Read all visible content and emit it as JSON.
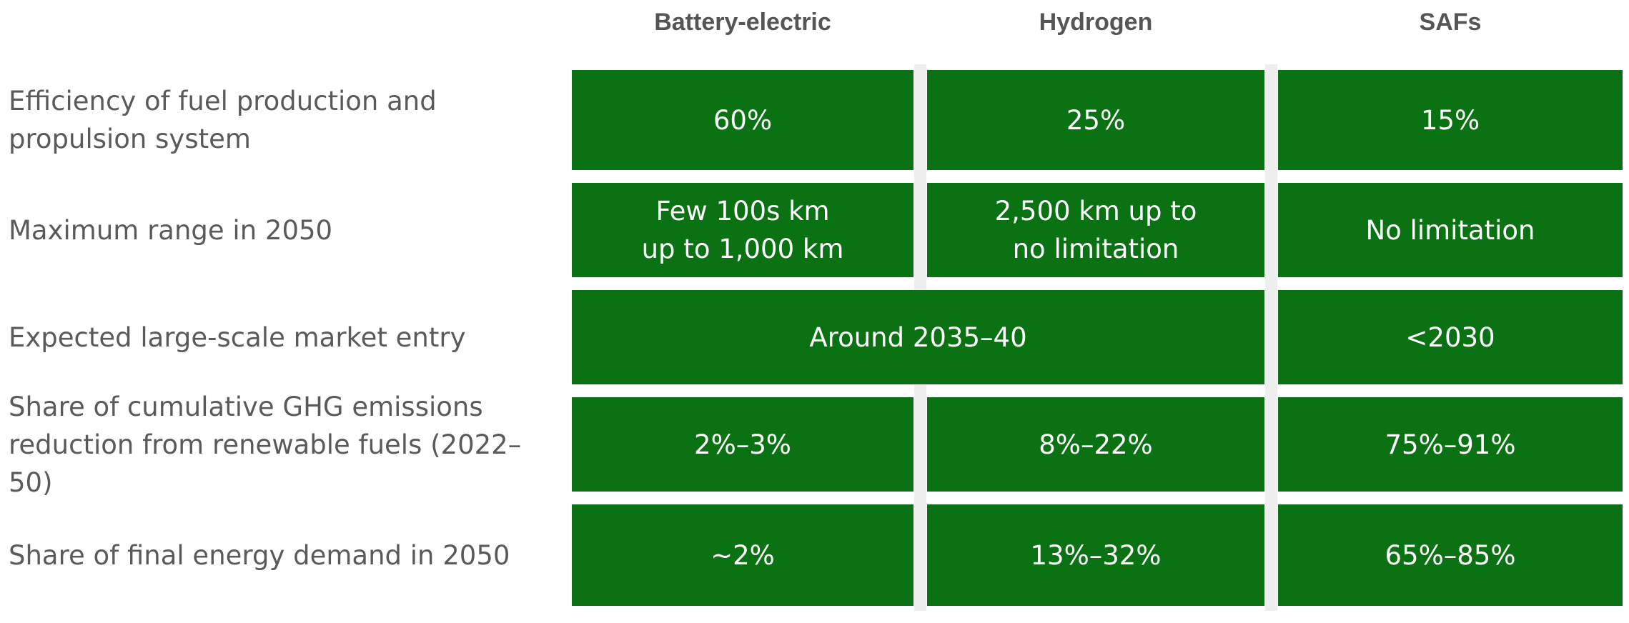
{
  "colors": {
    "cell_fill": "#0a7212",
    "cell_text": "#ffffff",
    "label_text": "#5a5a5a",
    "header_text": "#555555",
    "separator": "#eeeeee"
  },
  "chart_data": {
    "type": "table",
    "columns": [
      "Battery-electric",
      "Hydrogen",
      "SAFs"
    ],
    "rows": [
      {
        "label": "Efficiency of fuel production and propulsion system",
        "cells": [
          {
            "text": "60%",
            "span": 1
          },
          {
            "text": "25%",
            "span": 1
          },
          {
            "text": "15%",
            "span": 1
          }
        ]
      },
      {
        "label": "Maximum range in 2050",
        "cells": [
          {
            "text": "Few 100s km up to 1,000 km",
            "span": 1
          },
          {
            "text": "2,500 km up to no limitation",
            "span": 1
          },
          {
            "text": "No limitation",
            "span": 1
          }
        ]
      },
      {
        "label": "Expected large-scale market entry",
        "cells": [
          {
            "text": "Around 2035–40",
            "span": 2
          },
          {
            "text": "<2030",
            "span": 1
          }
        ]
      },
      {
        "label": "Share of cumulative GHG emissions reduction from renewable fuels (2022–50)",
        "cells": [
          {
            "text": "2%–3%",
            "span": 1
          },
          {
            "text": "8%–22%",
            "span": 1
          },
          {
            "text": "75%–91%",
            "span": 1
          }
        ]
      },
      {
        "label": "Share of final energy demand in 2050",
        "cells": [
          {
            "text": "~2%",
            "span": 1
          },
          {
            "text": "13%–32%",
            "span": 1
          },
          {
            "text": "65%–85%",
            "span": 1
          }
        ]
      }
    ]
  }
}
